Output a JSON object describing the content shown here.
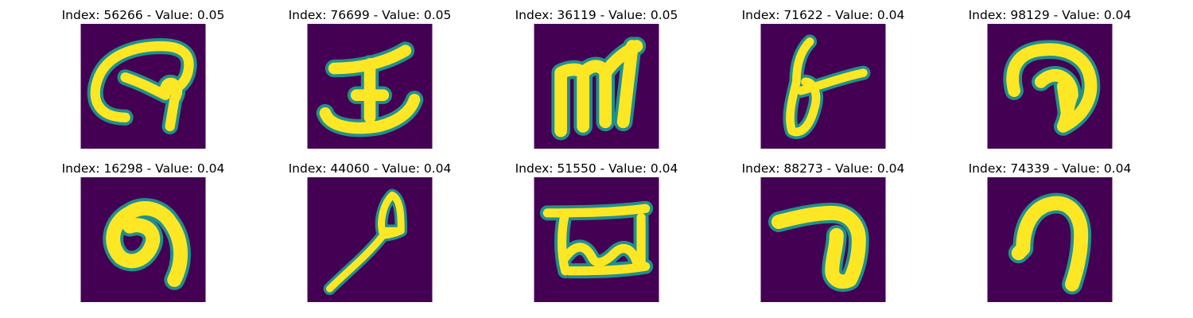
{
  "colors": {
    "background": "#440154",
    "stroke_core": "#fde725",
    "stroke_edge": "#21908c"
  },
  "panels": [
    {
      "title": "Index: 56266 - Value: 0.05",
      "glyph": "handwritten-glyph-loop-hook"
    },
    {
      "title": "Index: 76699 - Value: 0.05",
      "glyph": "handwritten-glyph-i-bar"
    },
    {
      "title": "Index: 36119 - Value: 0.05",
      "glyph": "handwritten-glyph-m"
    },
    {
      "title": "Index: 71622 - Value: 0.04",
      "glyph": "handwritten-glyph-6-slash"
    },
    {
      "title": "Index: 98129 - Value: 0.04",
      "glyph": "handwritten-glyph-hook-curl"
    },
    {
      "title": "Index: 16298 - Value: 0.04",
      "glyph": "handwritten-glyph-9-loop"
    },
    {
      "title": "Index: 44060 - Value: 0.04",
      "glyph": "handwritten-glyph-a-stick"
    },
    {
      "title": "Index: 51550 - Value: 0.04",
      "glyph": "handwritten-glyph-wave-bar"
    },
    {
      "title": "Index: 88273 - Value: 0.04",
      "glyph": "handwritten-glyph-7-hook"
    },
    {
      "title": "Index: 74339 - Value: 0.04",
      "glyph": "handwritten-glyph-n-arch"
    }
  ]
}
